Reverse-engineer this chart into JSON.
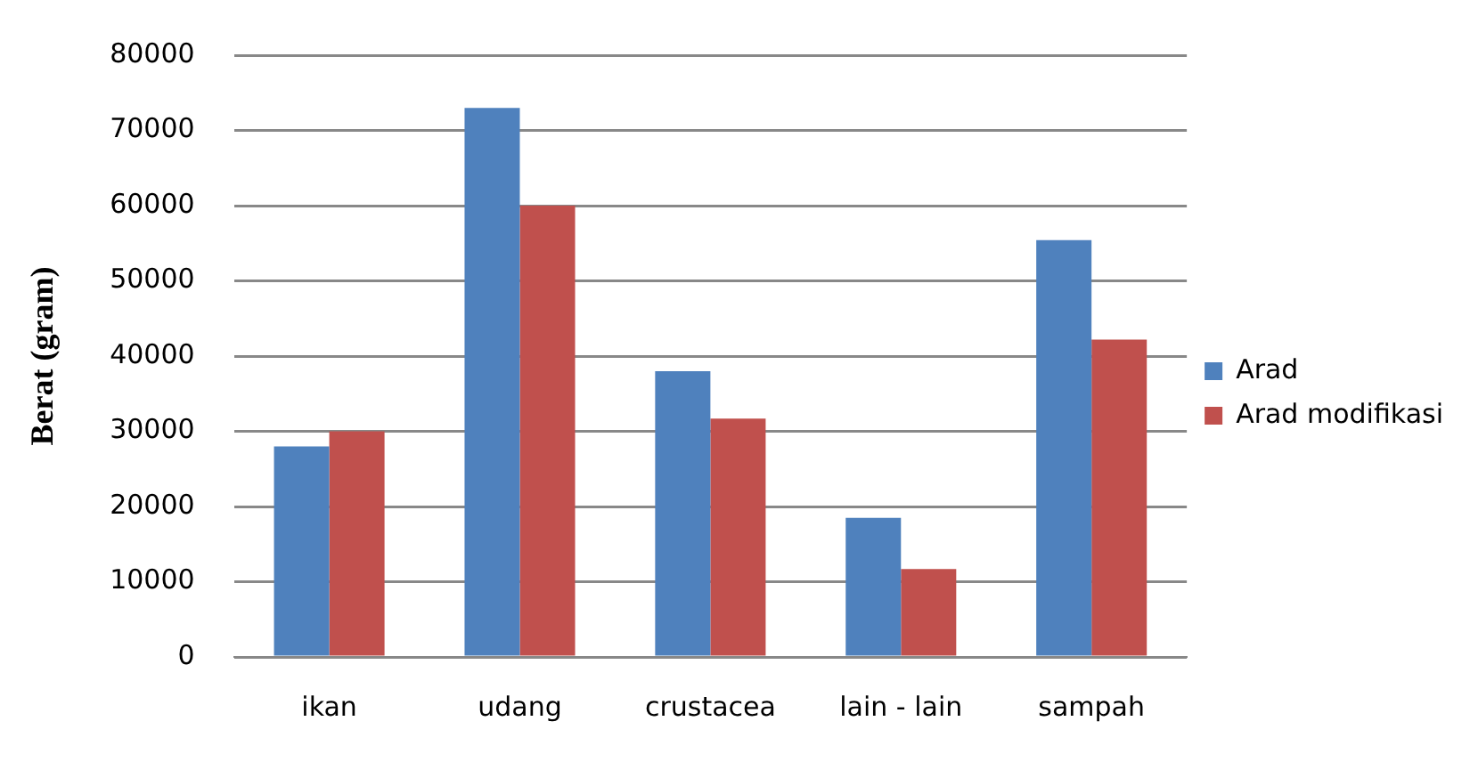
{
  "chart_data": {
    "type": "bar",
    "ylabel": "Berat (gram)",
    "categories": [
      "ikan",
      "udang",
      "crustacea",
      "lain - lain",
      "sampah"
    ],
    "series": [
      {
        "name": "Arad",
        "color": "#4f81bd",
        "values": [
          28000,
          73000,
          38000,
          18500,
          55400
        ]
      },
      {
        "name": "Arad modifikasi",
        "color": "#c0504d",
        "values": [
          30000,
          60000,
          31700,
          11700,
          42200
        ]
      }
    ],
    "ylim": [
      0,
      80000
    ],
    "yticks": [
      0,
      10000,
      20000,
      30000,
      40000,
      50000,
      60000,
      70000,
      80000
    ],
    "grid": "y",
    "legend": "right"
  }
}
